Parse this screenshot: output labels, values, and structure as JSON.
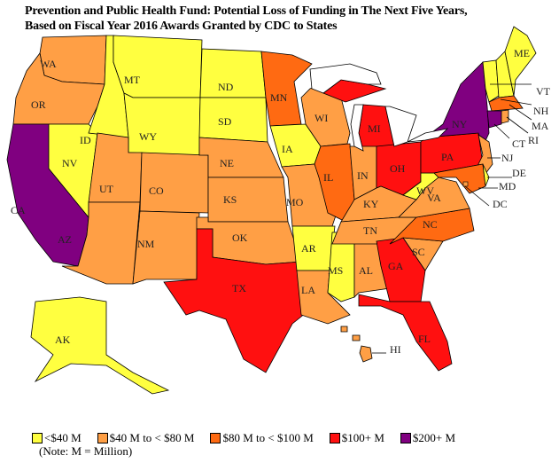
{
  "title_line1": "Prevention and Public Health Fund: Potential Loss of Funding in The Next Five Years,",
  "title_line2": "Based on Fiscal Year 2016 Awards Granted by CDC to States",
  "categories": {
    "c1": {
      "label": "<$40 M",
      "color": "#FFFF40"
    },
    "c2": {
      "label": "$40 M to < $80 M",
      "color": "#FF9F45"
    },
    "c3": {
      "label": "$80 M to < $100 M",
      "color": "#FF6A12"
    },
    "c4": {
      "label": "$100+ M",
      "color": "#FF1010"
    },
    "c5": {
      "label": "$200+ M",
      "color": "#800080"
    }
  },
  "note": "(Note: M = Million)",
  "states": {
    "WA": "c2",
    "OR": "c2",
    "CA": "c5",
    "NV": "c1",
    "ID": "c1",
    "MT": "c1",
    "WY": "c1",
    "UT": "c2",
    "AZ": "c2",
    "CO": "c2",
    "NM": "c2",
    "ND": "c1",
    "SD": "c1",
    "NE": "c2",
    "KS": "c2",
    "OK": "c2",
    "TX": "c4",
    "MN": "c3",
    "IA": "c1",
    "MO": "c2",
    "AR": "c1",
    "LA": "c2",
    "WI": "c2",
    "IL": "c3",
    "MS": "c1",
    "AL": "c2",
    "MI": "c4",
    "IN": "c2",
    "OH": "c4",
    "KY": "c2",
    "TN": "c2",
    "GA": "c4",
    "FL": "c4",
    "SC": "c2",
    "NC": "c3",
    "VA": "c2",
    "WV": "c1",
    "PA": "c4",
    "NY": "c5",
    "NJ": "c2",
    "MD": "c3",
    "DE": "c1",
    "VT": "c1",
    "NH": "c1",
    "ME": "c1",
    "MA": "c3",
    "CT": "c5",
    "RI": "c2",
    "AK": "c1",
    "HI": "c2",
    "DC": "c2"
  }
}
